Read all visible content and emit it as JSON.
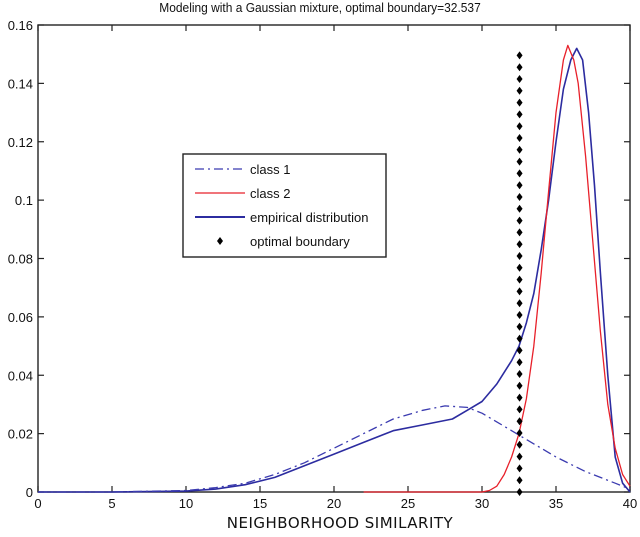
{
  "chart_data": {
    "type": "line",
    "title": "Modeling with a Gaussian mixture, optimal boundary=32.537",
    "xlabel": "NEIGHBORHOOD SIMILARITY",
    "ylabel": "",
    "xlim": [
      0,
      40
    ],
    "ylim": [
      0,
      0.16
    ],
    "xticks": [
      "0",
      "5",
      "10",
      "15",
      "20",
      "25",
      "30",
      "35",
      "40"
    ],
    "yticks": [
      "0",
      "0.02",
      "0.04",
      "0.06",
      "0.08",
      "0.1",
      "0.12",
      "0.14",
      "0.16"
    ],
    "grid": false,
    "legend_position": "center-left",
    "series": [
      {
        "name": "class 1",
        "style": "dash-dot",
        "color": "#3b3bb0",
        "x": [
          0,
          5,
          10,
          12,
          14,
          16,
          18,
          20,
          22,
          24,
          26,
          27.5,
          29,
          30,
          31,
          32,
          33,
          34,
          35,
          36,
          37,
          38,
          39,
          40
        ],
        "y": [
          0,
          0,
          0.0005,
          0.0015,
          0.003,
          0.006,
          0.01,
          0.015,
          0.02,
          0.025,
          0.028,
          0.0295,
          0.029,
          0.027,
          0.024,
          0.021,
          0.018,
          0.015,
          0.012,
          0.0095,
          0.007,
          0.005,
          0.003,
          0.001
        ]
      },
      {
        "name": "class 2",
        "style": "solid",
        "color": "#e8202a",
        "x": [
          22,
          25,
          28,
          30,
          30.5,
          31,
          31.5,
          32,
          32.5,
          33,
          33.5,
          34,
          34.5,
          35,
          35.5,
          35.8,
          36.2,
          36.5,
          37,
          37.5,
          38,
          38.5,
          39,
          39.5,
          40
        ],
        "y": [
          0,
          0,
          0,
          0,
          0.0005,
          0.002,
          0.006,
          0.012,
          0.02,
          0.032,
          0.05,
          0.075,
          0.103,
          0.13,
          0.148,
          0.153,
          0.148,
          0.14,
          0.115,
          0.085,
          0.055,
          0.03,
          0.015,
          0.006,
          0.002
        ]
      },
      {
        "name": "empirical distribution",
        "style": "solid",
        "color": "#2c2ca0",
        "x": [
          0,
          5,
          10,
          12,
          14,
          16,
          18,
          20,
          22,
          24,
          26,
          28,
          29,
          30,
          31,
          32,
          32.5,
          33,
          33.5,
          34,
          34.5,
          35,
          35.5,
          36,
          36.4,
          36.8,
          37.2,
          37.6,
          38,
          38.5,
          39,
          39.5,
          40
        ],
        "y": [
          0,
          0,
          0.0003,
          0.001,
          0.0025,
          0.005,
          0.009,
          0.013,
          0.017,
          0.021,
          0.023,
          0.025,
          0.028,
          0.031,
          0.037,
          0.045,
          0.05,
          0.058,
          0.068,
          0.083,
          0.1,
          0.12,
          0.138,
          0.148,
          0.152,
          0.148,
          0.13,
          0.105,
          0.075,
          0.04,
          0.012,
          0.003,
          0
        ]
      },
      {
        "name": "optimal boundary",
        "style": "markers",
        "marker": "diamond",
        "color": "#000000",
        "x_value": 32.537,
        "y_range": [
          0,
          0.153
        ]
      }
    ]
  },
  "legend": {
    "items": [
      {
        "label": "class 1"
      },
      {
        "label": "class 2"
      },
      {
        "label": "empirical distribution"
      },
      {
        "label": "optimal boundary"
      }
    ]
  }
}
